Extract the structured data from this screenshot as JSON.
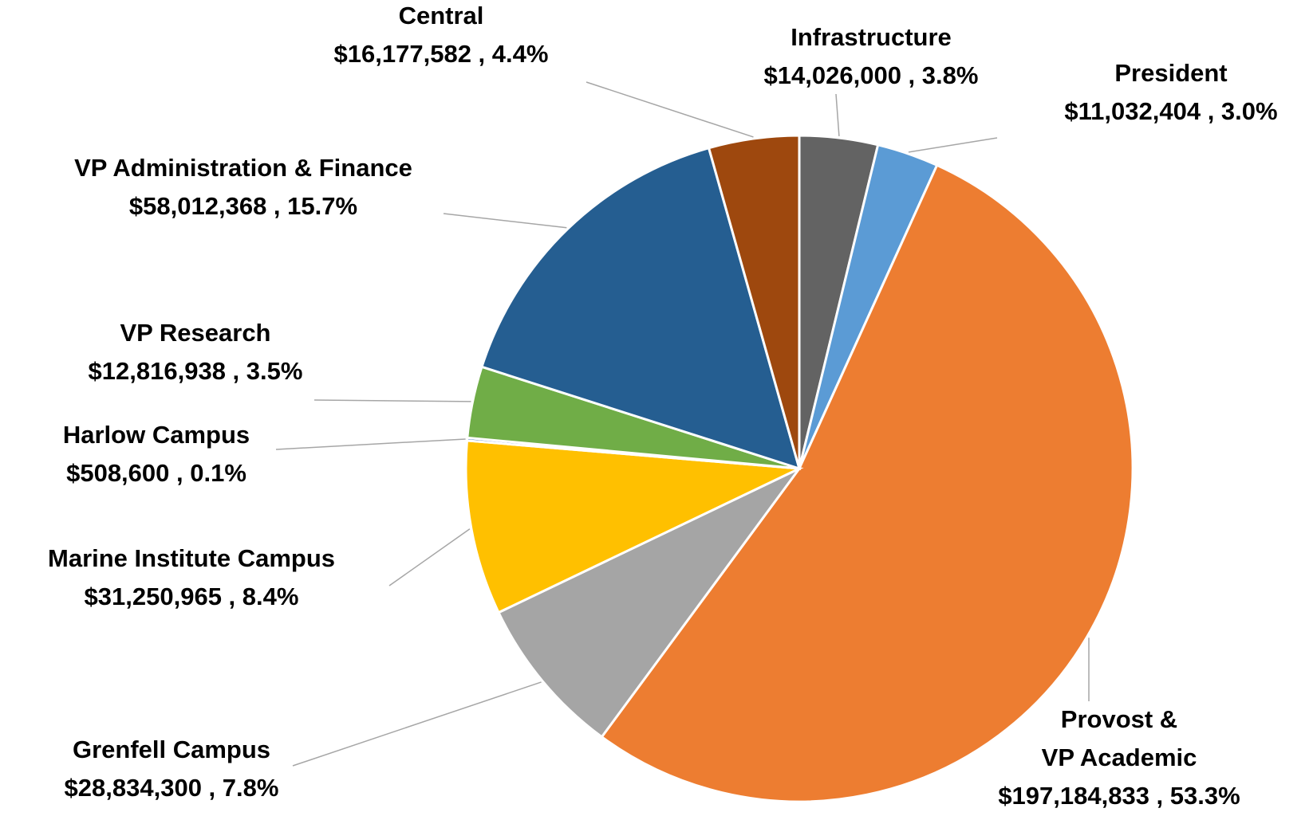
{
  "chart_data": {
    "type": "pie",
    "categories": [
      "Infrastructure",
      "President",
      "Provost &\nVP Academic",
      "Grenfell Campus",
      "Marine Institute Campus",
      "Harlow Campus",
      "VP Research",
      "VP Administration  & Finance",
      "Central"
    ],
    "values": [
      14026000,
      11032404,
      197184833,
      28834300,
      31250965,
      508600,
      12816938,
      58012368,
      16177582
    ],
    "value_labels": [
      "$14,026,000 , 3.8%",
      "$11,032,404 , 3.0%",
      "$197,184,833 , 53.3%",
      "$28,834,300 , 7.8%",
      "$31,250,965 , 8.4%",
      "$508,600 , 0.1%",
      "$12,816,938 , 3.5%",
      "$58,012,368 , 15.7%",
      "$16,177,582 , 4.4%"
    ],
    "colors": [
      "#636363",
      "#5b9bd5",
      "#ed7d31",
      "#a5a5a5",
      "#ffc000",
      "#4472c4",
      "#70ad47",
      "#255e91",
      "#9e480e"
    ]
  }
}
